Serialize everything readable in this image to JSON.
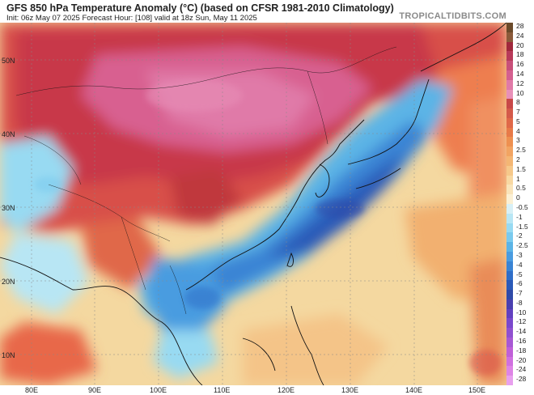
{
  "header": {
    "title": "GFS 850 hPa Temperature Anomaly (°C) (based on CFSR 1981-2010 Climatology)",
    "subtitle": "Init: 06z May 07 2025   Forecast Hour: [108]   valid at 18z Sun, May 11 2025",
    "brand": "TROPICALTIDBITS.COM"
  },
  "axes": {
    "lat_labels": [
      "50N",
      "40N",
      "30N",
      "20N",
      "10N"
    ],
    "lon_labels": [
      "80E",
      "90E",
      "100E",
      "110E",
      "120E",
      "130E",
      "140E",
      "150E"
    ]
  },
  "legend": {
    "values": [
      "28",
      "24",
      "20",
      "18",
      "16",
      "14",
      "12",
      "10",
      "8",
      "7",
      "5",
      "4",
      "3",
      "2.5",
      "2",
      "1.5",
      "1",
      "0.5",
      "0",
      "-0.5",
      "-1",
      "-1.5",
      "-2",
      "-2.5",
      "-3",
      "-4",
      "-5",
      "-6",
      "-7",
      "-8",
      "-10",
      "-12",
      "-14",
      "-16",
      "-18",
      "-20",
      "-24",
      "-28"
    ],
    "colors": [
      "#6b4a2a",
      "#8b5a3a",
      "#a0283c",
      "#b83a5a",
      "#c8507a",
      "#d46090",
      "#e07aa8",
      "#e890b8",
      "#c84848",
      "#d45a4a",
      "#e06848",
      "#e87a48",
      "#ee9050",
      "#f2a462",
      "#f4b674",
      "#f6c88a",
      "#f8d8a2",
      "#f9e4ba",
      "#fbf0d4",
      "#d8f0f6",
      "#b8e6f4",
      "#98daf2",
      "#7acaee",
      "#5cb4e6",
      "#4a9ce0",
      "#3a84d4",
      "#2f6ec8",
      "#2a5ab8",
      "#2f4aa8",
      "#4a40b0",
      "#6240c0",
      "#7a48cc",
      "#9050d0",
      "#a858d4",
      "#c060d8",
      "#d070e0",
      "#de84e6",
      "#e8a0ee"
    ]
  }
}
